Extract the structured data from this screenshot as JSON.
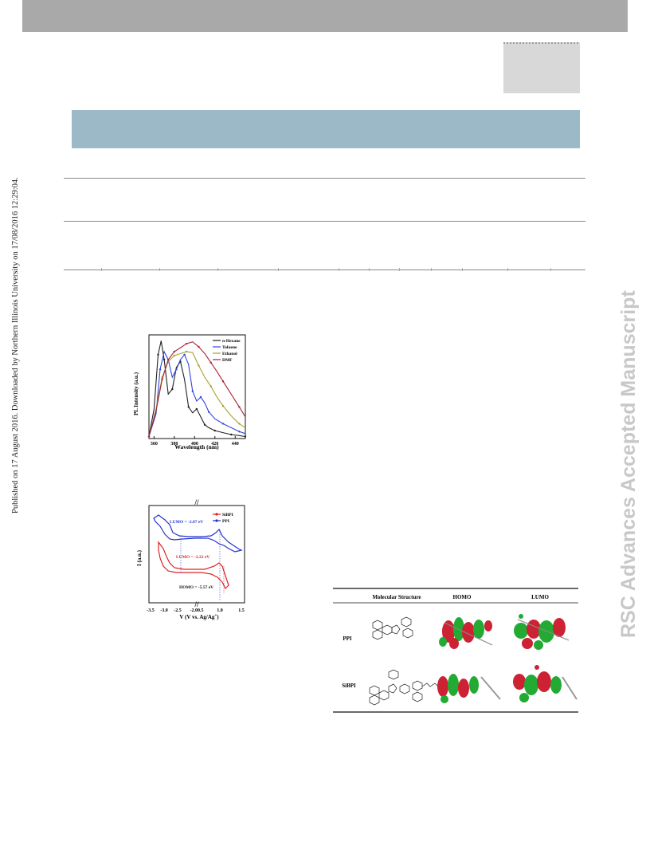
{
  "sidebar": {
    "published": "Published on 17 August 2016. Downloaded by Northern Illinois University on 17/08/2016 12:29:04.",
    "watermark": "RSC Advances Accepted Manuscript"
  },
  "figures": {
    "pl": {
      "xlabel": "Wavelength (nm)",
      "ylabel": "PL Intensity (a.u.)",
      "legend": [
        "n-Hexane",
        "Toluene",
        "Ethanol",
        "DMF"
      ],
      "xticks": [
        "360",
        "380",
        "400",
        "420",
        "440"
      ]
    },
    "cv": {
      "xlabel": "V (V vs. Ag/Ag",
      "xlabel_sup": "+",
      "xlabel_end": ")",
      "ylabel": "I (a.u.)",
      "legend": [
        "SiBPI",
        "PPI"
      ],
      "lumo_ppi": "LUMO = -2.07 eV",
      "lumo_sibpi": "LUMO = -2.22 eV",
      "homo_sibpi": "HOMO = -5.57 eV",
      "xticks": [
        "-3.5",
        "-3.0",
        "-2.5",
        "-2.00.5",
        "1.0",
        "1.5"
      ],
      "axis_break": "//"
    },
    "mo_table": {
      "headers": [
        "Molecular Structure",
        "HOMO",
        "LUMO"
      ],
      "rows": [
        "PPI",
        "SiBPI"
      ]
    }
  },
  "colors": {
    "topbar": "#a9a9a9",
    "title_band": "#9bb9c6",
    "nhexane": "#222222",
    "toluene": "#3344dd",
    "ethanol": "#a8a030",
    "dmf": "#aa2233",
    "sibpi": "#dd2222",
    "ppi": "#2233cc"
  },
  "chart_data": [
    {
      "type": "line",
      "xlabel": "Wavelength (nm)",
      "ylabel": "PL Intensity (a.u.)",
      "xlim": [
        355,
        450
      ],
      "ylim": [
        0,
        1.05
      ],
      "legend_position": "top-right",
      "series": [
        {
          "name": "n-Hexane",
          "x": [
            355,
            360,
            364,
            367,
            370,
            374,
            378,
            382,
            386,
            390,
            394,
            398,
            402,
            406,
            410,
            414,
            420,
            428,
            436,
            444,
            450
          ],
          "y": [
            0.02,
            0.3,
            0.85,
            0.99,
            0.8,
            0.45,
            0.5,
            0.72,
            0.78,
            0.6,
            0.32,
            0.26,
            0.3,
            0.22,
            0.14,
            0.11,
            0.08,
            0.06,
            0.04,
            0.03,
            0.02
          ]
        },
        {
          "name": "Toluene",
          "x": [
            355,
            362,
            366,
            370,
            374,
            378,
            382,
            386,
            390,
            394,
            398,
            402,
            406,
            410,
            414,
            420,
            428,
            436,
            444,
            450
          ],
          "y": [
            0.02,
            0.25,
            0.7,
            0.88,
            0.8,
            0.62,
            0.7,
            0.8,
            0.85,
            0.75,
            0.48,
            0.38,
            0.42,
            0.36,
            0.27,
            0.2,
            0.15,
            0.11,
            0.07,
            0.05
          ]
        },
        {
          "name": "Ethanol",
          "x": [
            355,
            362,
            368,
            374,
            380,
            386,
            392,
            398,
            404,
            410,
            416,
            422,
            428,
            436,
            444,
            450
          ],
          "y": [
            0.02,
            0.3,
            0.62,
            0.78,
            0.84,
            0.86,
            0.88,
            0.87,
            0.74,
            0.62,
            0.53,
            0.42,
            0.33,
            0.23,
            0.15,
            0.11
          ]
        },
        {
          "name": "DMF",
          "x": [
            355,
            362,
            368,
            374,
            380,
            386,
            392,
            398,
            404,
            410,
            416,
            422,
            428,
            436,
            444,
            450
          ],
          "y": [
            0.02,
            0.28,
            0.6,
            0.8,
            0.88,
            0.92,
            0.96,
            0.98,
            0.93,
            0.86,
            0.77,
            0.68,
            0.58,
            0.45,
            0.32,
            0.22
          ]
        }
      ]
    },
    {
      "type": "line",
      "xlabel": "V (V vs. Ag/Ag+)",
      "ylabel": "I (a.u.)",
      "legend_position": "top-right",
      "series": [
        {
          "name": "SiBPI"
        },
        {
          "name": "PPI"
        }
      ],
      "annotations": [
        "LUMO = -2.07 eV",
        "LUMO = -2.22 eV",
        "HOMO = -5.57 eV"
      ]
    }
  ]
}
